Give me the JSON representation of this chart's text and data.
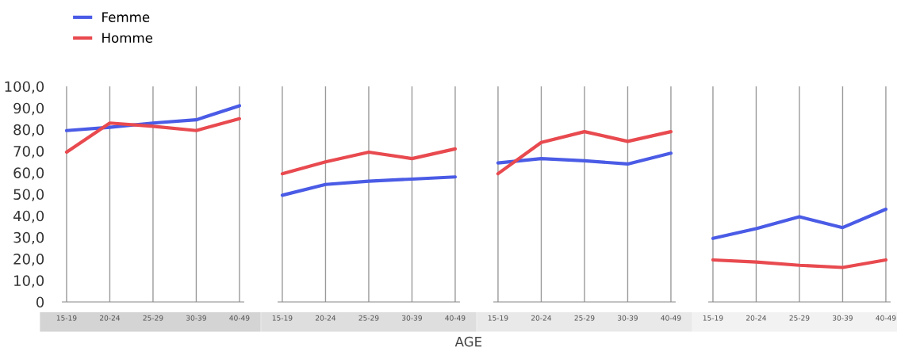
{
  "chart_data": [
    {
      "type": "line",
      "categories": [
        "15-19",
        "20-24",
        "25-29",
        "30-39",
        "40-49"
      ],
      "ylim": [
        0,
        100
      ],
      "yticks": [
        {
          "value": 0,
          "label": "0"
        },
        {
          "value": 10,
          "label": "10,0"
        },
        {
          "value": 20,
          "label": "20,0"
        },
        {
          "value": 30,
          "label": "30,0"
        },
        {
          "value": 40,
          "label": "40,0"
        },
        {
          "value": 50,
          "label": "50,0"
        },
        {
          "value": 60,
          "label": "60,0"
        },
        {
          "value": 70,
          "label": "70,0"
        },
        {
          "value": 80,
          "label": "80,0"
        },
        {
          "value": 90,
          "label": "90,0"
        },
        {
          "value": 100,
          "label": "100,0"
        }
      ],
      "grid": "x",
      "legend": "top left",
      "marker": "none",
      "line_style": "solid",
      "series": [
        {
          "name": "Femme",
          "color": "#4a5be6",
          "values": [
            79.5,
            81,
            83,
            84.5,
            91
          ]
        },
        {
          "name": "Homme",
          "color": "#e84a4f",
          "values": [
            69.5,
            83,
            81.5,
            79.5,
            85
          ]
        }
      ]
    },
    {
      "type": "line",
      "categories": [
        "15-19",
        "20-24",
        "25-29",
        "30-39",
        "40-49"
      ],
      "xlabel": "AGE",
      "ylim": [
        0,
        100
      ],
      "tick_labels": "x",
      "grid": "x",
      "marker": "none",
      "line_style": "solid",
      "series": [
        {
          "color": "#4a5be6",
          "values": [
            49.5,
            54.5,
            56,
            57,
            58
          ]
        },
        {
          "color": "#e84a4f",
          "values": [
            59.5,
            65,
            69.5,
            66.5,
            71
          ]
        }
      ]
    },
    {
      "type": "line",
      "categories": [
        "15-19",
        "20-24",
        "25-29",
        "30-39",
        "40-49"
      ],
      "ylim": [
        0,
        100
      ],
      "tick_labels": "x",
      "grid": "x",
      "marker": "none",
      "line_style": "solid",
      "series": [
        {
          "color": "#4a5be6",
          "values": [
            64.5,
            66.5,
            65.5,
            64,
            69
          ]
        },
        {
          "color": "#e84a4f",
          "values": [
            59.5,
            74,
            79,
            74.5,
            79
          ]
        }
      ]
    },
    {
      "type": "line",
      "categories": [
        "15-19",
        "20-24",
        "25-29",
        "30-39",
        "40-49"
      ],
      "ylim": [
        0,
        100
      ],
      "tick_labels": "x",
      "grid": "x",
      "marker": "none",
      "line_style": "solid",
      "series": [
        {
          "color": "#4a5be6",
          "values": [
            29.5,
            34,
            39.5,
            34.5,
            43
          ]
        },
        {
          "color": "#e84a4f",
          "values": [
            19.5,
            18.5,
            17,
            16,
            19.5
          ]
        }
      ]
    }
  ]
}
